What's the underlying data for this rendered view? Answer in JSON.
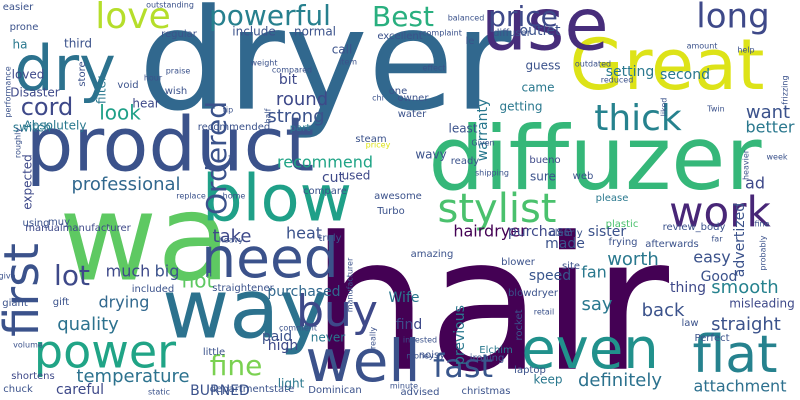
{
  "words": [
    {
      "text": "hair",
      "color": "#440154"
    },
    {
      "text": "dryer",
      "color": "#31688e"
    },
    {
      "text": "wa",
      "color": "#5ec962"
    },
    {
      "text": "diffuzer",
      "color": "#35b779"
    },
    {
      "text": "product",
      "color": "#3b528b"
    },
    {
      "text": "way",
      "color": "#2c728e"
    },
    {
      "text": "Great",
      "color": "#dde318"
    },
    {
      "text": "use",
      "color": "#472d7b"
    },
    {
      "text": "dry",
      "color": "#2c728e"
    },
    {
      "text": "blow",
      "color": "#1fa088"
    },
    {
      "text": "need",
      "color": "#3b528b"
    },
    {
      "text": "even",
      "color": "#21918c"
    },
    {
      "text": "well",
      "color": "#3b528b"
    },
    {
      "text": "first",
      "color": "#3b528b"
    },
    {
      "text": "flat",
      "color": "#26828e"
    },
    {
      "text": "power",
      "color": "#20a486"
    },
    {
      "text": "love",
      "color": "#b5de2b"
    },
    {
      "text": "long",
      "color": "#3e4989"
    },
    {
      "text": "work",
      "color": "#482677"
    },
    {
      "text": "stylist",
      "color": "#4ac16d"
    },
    {
      "text": "buy",
      "color": "#3e4989"
    },
    {
      "text": "powerful",
      "color": "#27808e"
    },
    {
      "text": "Best",
      "color": "#29af7f"
    },
    {
      "text": "price",
      "color": "#3e4989"
    },
    {
      "text": "thick",
      "color": "#26828e"
    },
    {
      "text": "Ordered",
      "color": "#3b528b"
    },
    {
      "text": "fast",
      "color": "#39568c"
    },
    {
      "text": "lot",
      "color": "#3e4989"
    },
    {
      "text": "fine",
      "color": "#7ad151"
    },
    {
      "text": "cord",
      "color": "#3e4989"
    },
    {
      "text": "professional",
      "color": "#31688e"
    },
    {
      "text": "attachment",
      "color": "#2d708e"
    },
    {
      "text": "smooth",
      "color": "#26828e"
    },
    {
      "text": "straight",
      "color": "#3b528b"
    },
    {
      "text": "definitely",
      "color": "#2c728e"
    },
    {
      "text": "temperature",
      "color": "#2c728e"
    },
    {
      "text": "look",
      "color": "#1fa088"
    },
    {
      "text": "round",
      "color": "#3e4989"
    },
    {
      "text": "strong",
      "color": "#3b528b"
    },
    {
      "text": "quality",
      "color": "#2c728e"
    },
    {
      "text": "hot",
      "color": "#5ec962"
    },
    {
      "text": "heat",
      "color": "#3b528b"
    },
    {
      "text": "recommend",
      "color": "#20a486"
    },
    {
      "text": "hairdryer",
      "color": "#440154"
    },
    {
      "text": "take",
      "color": "#3e4989"
    },
    {
      "text": "worth",
      "color": "#2a788e"
    },
    {
      "text": "back",
      "color": "#3b528b"
    },
    {
      "text": "better",
      "color": "#2a788e"
    },
    {
      "text": "want",
      "color": "#3b528b"
    },
    {
      "text": "setting",
      "color": "#2a788e"
    },
    {
      "text": "second",
      "color": "#2a788e"
    },
    {
      "text": "fan",
      "color": "#2a788e"
    },
    {
      "text": "Good",
      "color": "#3b528b"
    },
    {
      "text": "cut",
      "color": "#3e4989"
    },
    {
      "text": "easy",
      "color": "#3b528b"
    },
    {
      "text": "much",
      "color": "#3e4989"
    },
    {
      "text": "big",
      "color": "#3b528b"
    },
    {
      "text": "speed",
      "color": "#39568c"
    },
    {
      "text": "drying",
      "color": "#31688e"
    },
    {
      "text": "purchase",
      "color": "#3e4989"
    },
    {
      "text": "purchased",
      "color": "#31688e"
    },
    {
      "text": "say",
      "color": "#2a788e"
    },
    {
      "text": "thing",
      "color": "#3e4989"
    },
    {
      "text": "made",
      "color": "#3b528b"
    },
    {
      "text": "sister",
      "color": "#3b528b"
    },
    {
      "text": "find",
      "color": "#3e4989"
    },
    {
      "text": "ad",
      "color": "#3e4989"
    },
    {
      "text": "advertized",
      "color": "#3b528b"
    },
    {
      "text": "warranty",
      "color": "#2a788e"
    },
    {
      "text": "bit",
      "color": "#3e4989"
    },
    {
      "text": "outlet",
      "color": "#3b528b"
    },
    {
      "text": "previous",
      "color": "#2a788e"
    },
    {
      "text": "Wife",
      "color": "#2a788e"
    },
    {
      "text": "paid",
      "color": "#3b528b"
    },
    {
      "text": "high",
      "color": "#3e4989"
    },
    {
      "text": "BURNED",
      "color": "#3b528b"
    },
    {
      "text": "careful",
      "color": "#3e4989"
    },
    {
      "text": "Absolutely",
      "color": "#2a788e"
    },
    {
      "text": "expected",
      "color": "#3e4989"
    },
    {
      "text": "loved",
      "color": "#3e4989"
    },
    {
      "text": "third",
      "color": "#3b528b"
    },
    {
      "text": "guess",
      "color": "#3b528b"
    },
    {
      "text": "came",
      "color": "#2a788e"
    },
    {
      "text": "getting",
      "color": "#2a788e"
    },
    {
      "text": "least",
      "color": "#3b528b"
    },
    {
      "text": "used",
      "color": "#3e4989"
    },
    {
      "text": "normal",
      "color": "#3b528b"
    },
    {
      "text": "keep",
      "color": "#2a788e"
    },
    {
      "text": "hear",
      "color": "#3e4989"
    },
    {
      "text": "include",
      "color": "#3b528b"
    },
    {
      "text": "call",
      "color": "#3b528b"
    },
    {
      "text": "diffuser",
      "color": "#3b528b"
    },
    {
      "text": "ha",
      "color": "#2a788e"
    },
    {
      "text": "filter",
      "color": "#2a788e"
    },
    {
      "text": "switch",
      "color": "#2a788e"
    },
    {
      "text": "Disaster",
      "color": "#3e4989"
    },
    {
      "text": "manualmanufacturer",
      "color": "#3e4989"
    },
    {
      "text": "light",
      "color": "#2a788e"
    },
    {
      "text": "never",
      "color": "#2a788e"
    },
    {
      "text": "shortens",
      "color": "#3e4989"
    },
    {
      "text": "chuck",
      "color": "#3b528b"
    },
    {
      "text": "Dominican",
      "color": "#3b528b"
    },
    {
      "text": "departmentstate",
      "color": "#3b528b"
    },
    {
      "text": "Elchim",
      "color": "#2a788e"
    },
    {
      "text": "laptop",
      "color": "#3b528b"
    },
    {
      "text": "law",
      "color": "#3b528b"
    },
    {
      "text": "misleading",
      "color": "#3e4989"
    },
    {
      "text": "noisy",
      "color": "#3b528b"
    },
    {
      "text": "compare",
      "color": "#3b528b"
    },
    {
      "text": "truly",
      "color": "#3b528b"
    },
    {
      "text": "wavy",
      "color": "#3b528b"
    },
    {
      "text": "ready",
      "color": "#3b528b"
    },
    {
      "text": "bueno",
      "color": "#3e4989"
    },
    {
      "text": "sure",
      "color": "#3b528b"
    },
    {
      "text": "web",
      "color": "#3b528b"
    },
    {
      "text": "plastic",
      "color": "#4ac16d"
    },
    {
      "text": "frying",
      "color": "#3b528b"
    },
    {
      "text": "review_body",
      "color": "#3b528b"
    },
    {
      "text": "clearly",
      "color": "#3b528b"
    },
    {
      "text": "awesome",
      "color": "#3b528b"
    },
    {
      "text": "Turbo",
      "color": "#3b528b"
    },
    {
      "text": "please",
      "color": "#2a788e"
    },
    {
      "text": "blower",
      "color": "#3b528b"
    },
    {
      "text": "blowdryer",
      "color": "#3b528b"
    },
    {
      "text": "afterwards",
      "color": "#3b528b"
    },
    {
      "text": "amazing",
      "color": "#3b528b"
    },
    {
      "text": "site",
      "color": "#3b528b"
    },
    {
      "text": "Perfect",
      "color": "#3b528b"
    },
    {
      "text": "ironing",
      "color": "#3b528b"
    },
    {
      "text": "christmas",
      "color": "#3b528b"
    },
    {
      "text": "advised",
      "color": "#3b528b"
    },
    {
      "text": "one",
      "color": "#3b528b"
    },
    {
      "text": "owner",
      "color": "#3b528b"
    },
    {
      "text": "water",
      "color": "#3b528b"
    },
    {
      "text": "steam",
      "color": "#3b528b"
    },
    {
      "text": "excellent",
      "color": "#3b528b"
    },
    {
      "text": "complaint",
      "color": "#3b528b"
    },
    {
      "text": "le",
      "color": "#3b528b"
    },
    {
      "text": "recommended",
      "color": "#3b528b"
    },
    {
      "text": "part",
      "color": "#2a788e"
    },
    {
      "text": "wish",
      "color": "#3b528b"
    },
    {
      "text": "void",
      "color": "#3b528b"
    },
    {
      "text": "praise",
      "color": "#3b528b"
    },
    {
      "text": "store",
      "color": "#3b528b"
    },
    {
      "text": "regular",
      "color": "#3b528b"
    },
    {
      "text": "outstanding",
      "color": "#3b528b"
    },
    {
      "text": "easier",
      "color": "#3b528b"
    },
    {
      "text": "prone",
      "color": "#3b528b"
    },
    {
      "text": "weight",
      "color": "#3b528b"
    },
    {
      "text": "compared",
      "color": "#3b528b"
    },
    {
      "text": "item",
      "color": "#3b528b"
    },
    {
      "text": "effect",
      "color": "#3b528b"
    },
    {
      "text": "balanced",
      "color": "#3b528b"
    },
    {
      "text": "liked",
      "color": "#3b528b"
    },
    {
      "text": "reduced",
      "color": "#3b528b"
    },
    {
      "text": "amount",
      "color": "#3b528b"
    },
    {
      "text": "help",
      "color": "#3b528b"
    },
    {
      "text": "frizzing",
      "color": "#3b528b"
    },
    {
      "text": "Twin",
      "color": "#3b528b"
    },
    {
      "text": "heavier",
      "color": "#3b528b"
    },
    {
      "text": "shipping",
      "color": "#3b528b"
    },
    {
      "text": "Given",
      "color": "#3b528b"
    },
    {
      "text": "pricey",
      "color": "#dde318"
    },
    {
      "text": "tip",
      "color": "#3b528b"
    },
    {
      "text": "half",
      "color": "#3b528b"
    },
    {
      "text": "chi",
      "color": "#3b528b"
    },
    {
      "text": "hour",
      "color": "#3b528b"
    },
    {
      "text": "performance",
      "color": "#3b528b"
    },
    {
      "text": "replace",
      "color": "#3b528b"
    },
    {
      "text": "home",
      "color": "#3b528b"
    },
    {
      "text": "side",
      "color": "#3b528b"
    },
    {
      "text": "using",
      "color": "#3b528b"
    },
    {
      "text": "muy",
      "color": "#3b528b"
    },
    {
      "text": "gift",
      "color": "#3b528b"
    },
    {
      "text": "giant",
      "color": "#3b528b"
    },
    {
      "text": "included",
      "color": "#3b528b"
    },
    {
      "text": "straightener",
      "color": "#3b528b"
    },
    {
      "text": "heavy",
      "color": "#3b528b"
    },
    {
      "text": "little",
      "color": "#3b528b"
    },
    {
      "text": "volume",
      "color": "#3b528b"
    },
    {
      "text": "static",
      "color": "#3b528b"
    },
    {
      "text": "minute",
      "color": "#3b528b"
    },
    {
      "text": "money",
      "color": "#3b528b"
    },
    {
      "text": "invested",
      "color": "#3b528b"
    },
    {
      "text": "really",
      "color": "#3b528b"
    },
    {
      "text": "manufacturer",
      "color": "#3b528b"
    },
    {
      "text": "rocket",
      "color": "#3b528b"
    },
    {
      "text": "iron",
      "color": "#3b528b"
    },
    {
      "text": "retail",
      "color": "#3b528b"
    },
    {
      "text": "comment",
      "color": "#3b528b"
    },
    {
      "text": "give",
      "color": "#3b528b"
    },
    {
      "text": "roughly",
      "color": "#3b528b"
    },
    {
      "text": "probably",
      "color": "#3b528b"
    },
    {
      "text": "week",
      "color": "#3b528b"
    },
    {
      "text": "outdated",
      "color": "#3b528b"
    },
    {
      "text": "far",
      "color": "#3b528b"
    },
    {
      "text": "fine",
      "color": "#3b528b"
    }
  ]
}
